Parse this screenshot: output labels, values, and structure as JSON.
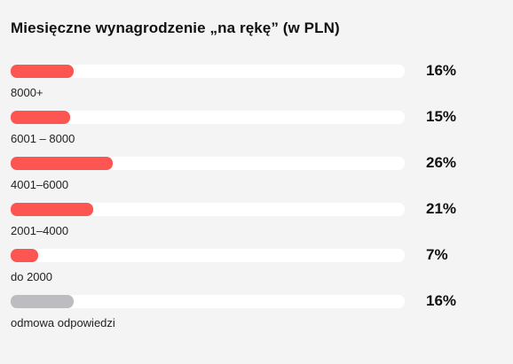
{
  "chart_data": {
    "type": "bar",
    "orientation": "horizontal",
    "title": "Miesięczne wynagrodzenie „na rękę” (w PLN)",
    "categories": [
      "8000+",
      "6001 – 8000",
      "4001–6000",
      "2001–4000",
      "do 2000",
      "odmowa odpowiedzi"
    ],
    "values": [
      16,
      15,
      26,
      21,
      7,
      16
    ],
    "value_labels": [
      "16%",
      "15%",
      "26%",
      "21%",
      "7%",
      "16%"
    ],
    "xlim": [
      0,
      100
    ],
    "colors": [
      "#fd5552",
      "#fd5552",
      "#fd5552",
      "#fd5552",
      "#fd5552",
      "#bcbcc1"
    ],
    "track_color": "#ffffff",
    "grid": false,
    "legend": "none"
  }
}
